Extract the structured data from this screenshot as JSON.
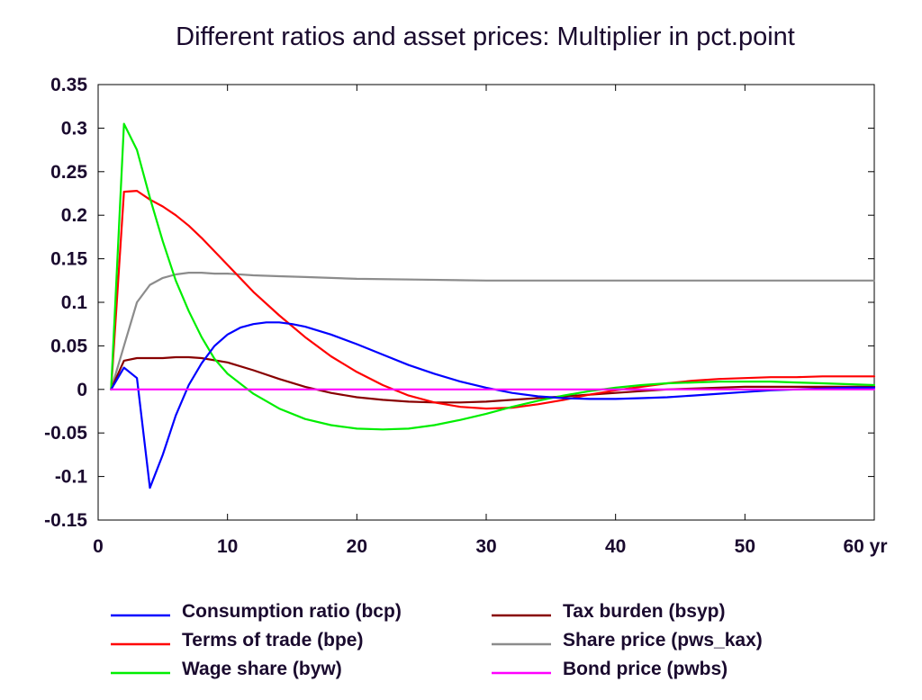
{
  "chart_data": {
    "type": "line",
    "title": "Different ratios and asset prices: Multiplier in pct.point",
    "xlabel": "",
    "ylabel": "",
    "x_unit_label": "yr",
    "xlim": [
      0,
      60
    ],
    "ylim": [
      -0.15,
      0.35
    ],
    "x_ticks": [
      0,
      10,
      20,
      30,
      40,
      50,
      60
    ],
    "x_tick_labels": [
      "0",
      "10",
      "20",
      "30",
      "40",
      "50",
      "60 yr"
    ],
    "y_ticks": [
      -0.15,
      -0.1,
      -0.05,
      0,
      0.05,
      0.1,
      0.15,
      0.2,
      0.25,
      0.3,
      0.35
    ],
    "y_tick_labels": [
      "-0.15",
      "-0.1",
      "-0.05",
      "0",
      "0.05",
      "0.1",
      "0.15",
      "0.2",
      "0.25",
      "0.3",
      "0.35"
    ],
    "grid": false,
    "legend_position": "bottom",
    "series": [
      {
        "name": "Consumption ratio (bcp)",
        "color": "#0000ff",
        "x": [
          1,
          2,
          3,
          4,
          5,
          6,
          7,
          8,
          9,
          10,
          11,
          12,
          13,
          14,
          15,
          16,
          18,
          20,
          22,
          24,
          26,
          28,
          30,
          32,
          34,
          36,
          38,
          40,
          42,
          44,
          46,
          48,
          50,
          52,
          54,
          56,
          58,
          60
        ],
        "values": [
          0,
          0.025,
          0.013,
          -0.113,
          -0.075,
          -0.03,
          0.005,
          0.03,
          0.05,
          0.063,
          0.071,
          0.075,
          0.077,
          0.077,
          0.075,
          0.072,
          0.063,
          0.052,
          0.04,
          0.028,
          0.018,
          0.009,
          0.002,
          -0.004,
          -0.008,
          -0.01,
          -0.011,
          -0.011,
          -0.01,
          -0.009,
          -0.007,
          -0.005,
          -0.003,
          -0.001,
          0.0,
          0.001,
          0.002,
          0.002
        ]
      },
      {
        "name": "Terms of trade (bpe)",
        "color": "#ff0000",
        "x": [
          1,
          2,
          3,
          4,
          5,
          6,
          7,
          8,
          10,
          12,
          14,
          16,
          18,
          20,
          22,
          24,
          26,
          28,
          30,
          32,
          34,
          36,
          38,
          40,
          42,
          44,
          46,
          48,
          50,
          52,
          54,
          56,
          58,
          60
        ],
        "values": [
          0,
          0.227,
          0.228,
          0.218,
          0.21,
          0.2,
          0.188,
          0.174,
          0.143,
          0.112,
          0.085,
          0.06,
          0.038,
          0.02,
          0.005,
          -0.007,
          -0.015,
          -0.02,
          -0.022,
          -0.021,
          -0.017,
          -0.012,
          -0.006,
          -0.001,
          0.003,
          0.007,
          0.01,
          0.012,
          0.013,
          0.014,
          0.014,
          0.015,
          0.015,
          0.015
        ]
      },
      {
        "name": "Wage share (byw)",
        "color": "#00ee00",
        "x": [
          1,
          2,
          3,
          4,
          5,
          6,
          7,
          8,
          9,
          10,
          12,
          14,
          16,
          18,
          20,
          22,
          24,
          26,
          28,
          30,
          32,
          34,
          36,
          38,
          40,
          42,
          44,
          46,
          48,
          50,
          52,
          54,
          56,
          58,
          60
        ],
        "values": [
          0,
          0.305,
          0.275,
          0.22,
          0.17,
          0.125,
          0.09,
          0.06,
          0.035,
          0.018,
          -0.005,
          -0.022,
          -0.034,
          -0.041,
          -0.045,
          -0.046,
          -0.045,
          -0.041,
          -0.035,
          -0.028,
          -0.02,
          -0.013,
          -0.007,
          -0.002,
          0.002,
          0.005,
          0.007,
          0.008,
          0.009,
          0.009,
          0.009,
          0.008,
          0.007,
          0.006,
          0.005
        ]
      },
      {
        "name": "Tax burden (bsyp)",
        "color": "#880000",
        "x": [
          1,
          2,
          3,
          4,
          5,
          6,
          7,
          8,
          10,
          12,
          14,
          16,
          18,
          20,
          22,
          24,
          26,
          28,
          30,
          32,
          34,
          36,
          38,
          40,
          42,
          44,
          46,
          48,
          50,
          52,
          54,
          56,
          58,
          60
        ],
        "values": [
          0,
          0.033,
          0.036,
          0.036,
          0.036,
          0.037,
          0.037,
          0.036,
          0.031,
          0.022,
          0.012,
          0.003,
          -0.004,
          -0.009,
          -0.012,
          -0.014,
          -0.015,
          -0.015,
          -0.014,
          -0.012,
          -0.01,
          -0.008,
          -0.006,
          -0.004,
          -0.002,
          0.0,
          0.001,
          0.002,
          0.003,
          0.003,
          0.003,
          0.003,
          0.003,
          0.003
        ]
      },
      {
        "name": "Share price (pws_kax)",
        "color": "#8c8c8c",
        "x": [
          1,
          2,
          3,
          4,
          5,
          6,
          7,
          8,
          9,
          10,
          12,
          14,
          16,
          18,
          20,
          25,
          30,
          35,
          40,
          45,
          50,
          55,
          60
        ],
        "values": [
          0,
          0.05,
          0.1,
          0.12,
          0.128,
          0.132,
          0.134,
          0.134,
          0.133,
          0.133,
          0.131,
          0.13,
          0.129,
          0.128,
          0.127,
          0.126,
          0.125,
          0.125,
          0.125,
          0.125,
          0.125,
          0.125,
          0.125
        ]
      },
      {
        "name": "Bond price (pwbs)",
        "color": "#ff00ff",
        "x": [
          1,
          60
        ],
        "values": [
          0,
          0
        ]
      }
    ]
  }
}
